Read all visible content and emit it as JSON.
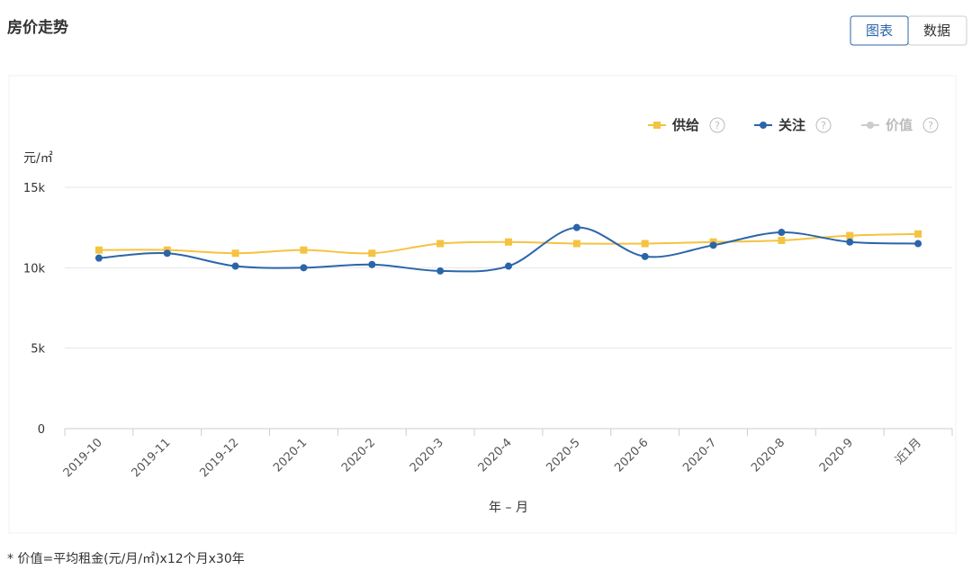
{
  "header": {
    "title": "房价走势",
    "tabs": [
      "图表",
      "数据"
    ]
  },
  "chart_data": {
    "type": "line",
    "y_label": "元/㎡",
    "x_label": "年 – 月",
    "categories": [
      "2019-10",
      "2019-11",
      "2019-12",
      "2020-1",
      "2020-2",
      "2020-3",
      "2020-4",
      "2020-5",
      "2020-6",
      "2020-7",
      "2020-8",
      "2020-9",
      "近1月"
    ],
    "series": [
      {
        "name": "供给",
        "color": "#f5c342",
        "marker": "square",
        "values": [
          11100,
          11100,
          10900,
          11100,
          10900,
          11500,
          11600,
          11500,
          11500,
          11600,
          11700,
          12000,
          12100
        ]
      },
      {
        "name": "关注",
        "color": "#2b65a9",
        "marker": "circle",
        "values": [
          10600,
          10900,
          10100,
          10000,
          10200,
          9800,
          10100,
          12500,
          10700,
          11400,
          12200,
          11600,
          11500
        ]
      },
      {
        "name": "价值",
        "color": "#cccccc",
        "marker": "circle",
        "visible": false,
        "values": [
          null,
          null,
          null,
          null,
          null,
          null,
          null,
          null,
          null,
          null,
          null,
          null,
          null
        ]
      }
    ],
    "ylim": [
      0,
      15000
    ],
    "yticks": [
      0,
      {
        "value": 5000,
        "label": "5k"
      },
      {
        "value": 10000,
        "label": "10k"
      },
      {
        "value": 15000,
        "label": "15k"
      }
    ],
    "grid": true,
    "legend": "top-right"
  },
  "footnote": "* 价值=平均租金(元/月/㎡)x12个月x30年"
}
